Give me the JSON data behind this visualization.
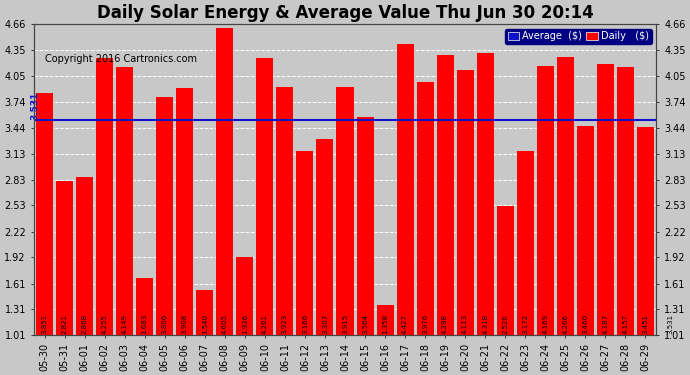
{
  "title": "Daily Solar Energy & Average Value Thu Jun 30 20:14",
  "copyright": "Copyright 2016 Cartronics.com",
  "categories": [
    "05-30",
    "05-31",
    "06-01",
    "06-02",
    "06-03",
    "06-04",
    "06-05",
    "06-06",
    "06-07",
    "06-08",
    "06-09",
    "06-10",
    "06-11",
    "06-12",
    "06-13",
    "06-14",
    "06-15",
    "06-16",
    "06-17",
    "06-18",
    "06-19",
    "06-20",
    "06-21",
    "06-22",
    "06-23",
    "06-24",
    "06-25",
    "06-26",
    "06-27",
    "06-28",
    "06-29"
  ],
  "values": [
    3.851,
    2.821,
    2.868,
    4.255,
    4.149,
    1.683,
    3.806,
    3.908,
    1.54,
    4.605,
    1.926,
    4.261,
    3.923,
    3.166,
    3.307,
    3.915,
    3.564,
    1.358,
    4.427,
    3.976,
    4.298,
    4.113,
    4.318,
    2.52,
    3.172,
    4.169,
    4.266,
    3.46,
    4.187,
    4.157,
    3.451
  ],
  "average": 3.531,
  "bar_color": "#ff0000",
  "average_line_color": "#1111cc",
  "background_color": "#c8c8c8",
  "plot_bg_color": "#c8c8c8",
  "yticks": [
    1.01,
    1.31,
    1.61,
    1.92,
    2.22,
    2.53,
    2.83,
    3.13,
    3.44,
    3.74,
    4.05,
    4.35,
    4.66
  ],
  "ylim_min": 1.01,
  "ylim_max": 4.66,
  "legend_avg_color": "#1111cc",
  "legend_daily_color": "#ff0000",
  "grid_color": "#ffffff",
  "title_fontsize": 12,
  "copyright_fontsize": 7,
  "tick_fontsize": 7,
  "bar_label_fontsize": 5,
  "avg_label": "3.531",
  "right_last_label": "3.531"
}
